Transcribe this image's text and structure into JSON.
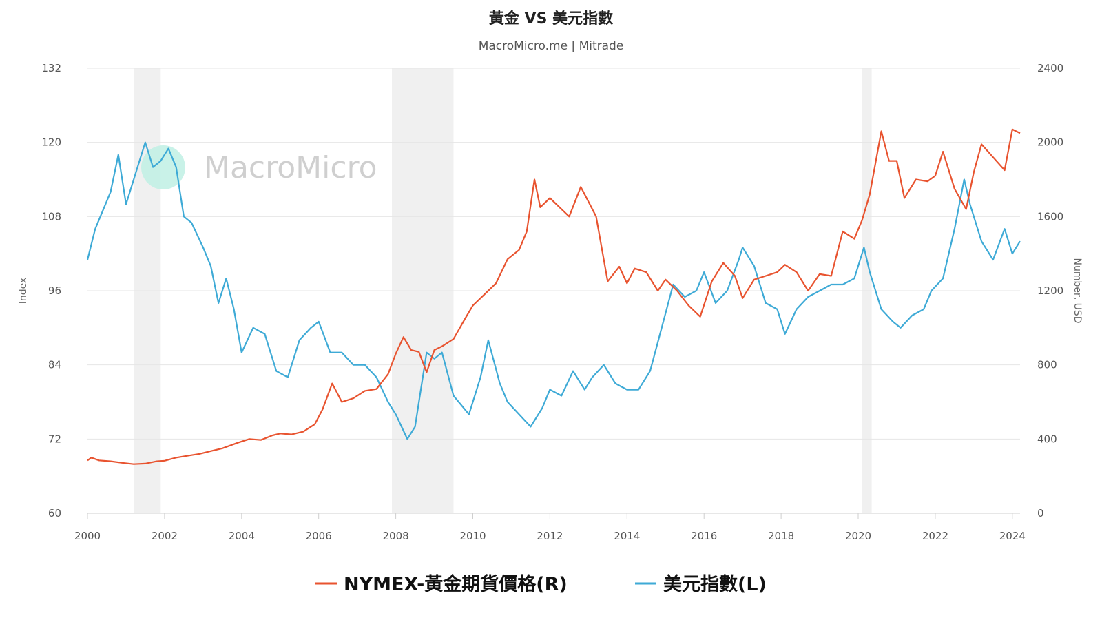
{
  "chart_data": {
    "type": "line",
    "title": "黃金 VS 美元指數",
    "subtitle": "MacroMicro.me | Mitrade",
    "watermark": "MacroMicro",
    "x_ticks": [
      "2000",
      "2002",
      "2004",
      "2006",
      "2008",
      "2010",
      "2012",
      "2014",
      "2016",
      "2018",
      "2020",
      "2022",
      "2024"
    ],
    "xlim": [
      2000,
      2024.2
    ],
    "y_left": {
      "label": "Index",
      "lim": [
        60,
        132
      ],
      "ticks": [
        60,
        72,
        84,
        96,
        108,
        120,
        132
      ]
    },
    "y_right": {
      "label": "Number, USD",
      "lim": [
        0,
        2400
      ],
      "ticks": [
        0,
        400,
        800,
        1200,
        1600,
        2000,
        2400
      ]
    },
    "grid": true,
    "legend_position": "bottom",
    "recession_bands": [
      [
        2001.2,
        2001.9
      ],
      [
        2007.9,
        2009.5
      ],
      [
        2020.1,
        2020.35
      ]
    ],
    "colors": {
      "gold": "#e8532f",
      "usd": "#3eaad6",
      "band": "#f0f0f0",
      "grid": "#e6e6e6"
    },
    "series": [
      {
        "name": "NYMEX-黃金期貨價格(R)",
        "axis": "right",
        "color": "#e8532f",
        "points": [
          [
            2000.0,
            285
          ],
          [
            2000.1,
            300
          ],
          [
            2000.3,
            285
          ],
          [
            2000.6,
            280
          ],
          [
            2000.9,
            272
          ],
          [
            2001.2,
            265
          ],
          [
            2001.5,
            268
          ],
          [
            2001.8,
            280
          ],
          [
            2002.0,
            283
          ],
          [
            2002.3,
            300
          ],
          [
            2002.6,
            310
          ],
          [
            2002.9,
            320
          ],
          [
            2003.2,
            335
          ],
          [
            2003.5,
            350
          ],
          [
            2003.9,
            380
          ],
          [
            2004.2,
            400
          ],
          [
            2004.5,
            395
          ],
          [
            2004.8,
            420
          ],
          [
            2005.0,
            430
          ],
          [
            2005.3,
            425
          ],
          [
            2005.6,
            440
          ],
          [
            2005.9,
            480
          ],
          [
            2006.1,
            560
          ],
          [
            2006.35,
            700
          ],
          [
            2006.6,
            600
          ],
          [
            2006.9,
            620
          ],
          [
            2007.2,
            660
          ],
          [
            2007.5,
            670
          ],
          [
            2007.8,
            750
          ],
          [
            2008.0,
            860
          ],
          [
            2008.2,
            950
          ],
          [
            2008.4,
            880
          ],
          [
            2008.6,
            870
          ],
          [
            2008.8,
            760
          ],
          [
            2009.0,
            880
          ],
          [
            2009.2,
            900
          ],
          [
            2009.5,
            940
          ],
          [
            2009.8,
            1050
          ],
          [
            2010.0,
            1120
          ],
          [
            2010.3,
            1180
          ],
          [
            2010.6,
            1240
          ],
          [
            2010.9,
            1370
          ],
          [
            2011.2,
            1420
          ],
          [
            2011.4,
            1520
          ],
          [
            2011.6,
            1800
          ],
          [
            2011.75,
            1650
          ],
          [
            2012.0,
            1700
          ],
          [
            2012.3,
            1640
          ],
          [
            2012.5,
            1600
          ],
          [
            2012.8,
            1760
          ],
          [
            2013.0,
            1680
          ],
          [
            2013.2,
            1600
          ],
          [
            2013.5,
            1250
          ],
          [
            2013.8,
            1330
          ],
          [
            2014.0,
            1240
          ],
          [
            2014.2,
            1320
          ],
          [
            2014.5,
            1300
          ],
          [
            2014.8,
            1200
          ],
          [
            2015.0,
            1260
          ],
          [
            2015.3,
            1200
          ],
          [
            2015.6,
            1120
          ],
          [
            2015.9,
            1060
          ],
          [
            2016.2,
            1250
          ],
          [
            2016.5,
            1350
          ],
          [
            2016.8,
            1280
          ],
          [
            2017.0,
            1160
          ],
          [
            2017.3,
            1260
          ],
          [
            2017.6,
            1280
          ],
          [
            2017.9,
            1300
          ],
          [
            2018.1,
            1340
          ],
          [
            2018.4,
            1300
          ],
          [
            2018.7,
            1200
          ],
          [
            2019.0,
            1290
          ],
          [
            2019.3,
            1280
          ],
          [
            2019.6,
            1520
          ],
          [
            2019.9,
            1480
          ],
          [
            2020.1,
            1580
          ],
          [
            2020.3,
            1720
          ],
          [
            2020.6,
            2060
          ],
          [
            2020.8,
            1900
          ],
          [
            2021.0,
            1900
          ],
          [
            2021.2,
            1700
          ],
          [
            2021.5,
            1800
          ],
          [
            2021.8,
            1790
          ],
          [
            2022.0,
            1820
          ],
          [
            2022.2,
            1950
          ],
          [
            2022.5,
            1750
          ],
          [
            2022.8,
            1640
          ],
          [
            2023.0,
            1840
          ],
          [
            2023.2,
            1990
          ],
          [
            2023.5,
            1920
          ],
          [
            2023.8,
            1850
          ],
          [
            2024.0,
            2070
          ],
          [
            2024.2,
            2050
          ]
        ]
      },
      {
        "name": "美元指數(L)",
        "axis": "left",
        "color": "#3eaad6",
        "points": [
          [
            2000.0,
            101
          ],
          [
            2000.2,
            106
          ],
          [
            2000.4,
            109
          ],
          [
            2000.6,
            112
          ],
          [
            2000.8,
            118
          ],
          [
            2001.0,
            110
          ],
          [
            2001.3,
            116
          ],
          [
            2001.5,
            120
          ],
          [
            2001.7,
            116
          ],
          [
            2001.9,
            117
          ],
          [
            2002.1,
            119
          ],
          [
            2002.3,
            116
          ],
          [
            2002.5,
            108
          ],
          [
            2002.7,
            107
          ],
          [
            2003.0,
            103
          ],
          [
            2003.2,
            100
          ],
          [
            2003.4,
            94
          ],
          [
            2003.6,
            98
          ],
          [
            2003.8,
            93
          ],
          [
            2004.0,
            86
          ],
          [
            2004.3,
            90
          ],
          [
            2004.6,
            89
          ],
          [
            2004.9,
            83
          ],
          [
            2005.2,
            82
          ],
          [
            2005.5,
            88
          ],
          [
            2005.8,
            90
          ],
          [
            2006.0,
            91
          ],
          [
            2006.3,
            86
          ],
          [
            2006.6,
            86
          ],
          [
            2006.9,
            84
          ],
          [
            2007.2,
            84
          ],
          [
            2007.5,
            82
          ],
          [
            2007.8,
            78
          ],
          [
            2008.0,
            76
          ],
          [
            2008.3,
            72
          ],
          [
            2008.5,
            74
          ],
          [
            2008.8,
            86
          ],
          [
            2009.0,
            85
          ],
          [
            2009.2,
            86
          ],
          [
            2009.5,
            79
          ],
          [
            2009.9,
            76
          ],
          [
            2010.2,
            82
          ],
          [
            2010.4,
            88
          ],
          [
            2010.7,
            81
          ],
          [
            2010.9,
            78
          ],
          [
            2011.2,
            76
          ],
          [
            2011.5,
            74
          ],
          [
            2011.8,
            77
          ],
          [
            2012.0,
            80
          ],
          [
            2012.3,
            79
          ],
          [
            2012.6,
            83
          ],
          [
            2012.9,
            80
          ],
          [
            2013.1,
            82
          ],
          [
            2013.4,
            84
          ],
          [
            2013.7,
            81
          ],
          [
            2014.0,
            80
          ],
          [
            2014.3,
            80
          ],
          [
            2014.6,
            83
          ],
          [
            2014.9,
            90
          ],
          [
            2015.2,
            97
          ],
          [
            2015.5,
            95
          ],
          [
            2015.8,
            96
          ],
          [
            2016.0,
            99
          ],
          [
            2016.3,
            94
          ],
          [
            2016.6,
            96
          ],
          [
            2016.9,
            101
          ],
          [
            2017.0,
            103
          ],
          [
            2017.3,
            100
          ],
          [
            2017.6,
            94
          ],
          [
            2017.9,
            93
          ],
          [
            2018.1,
            89
          ],
          [
            2018.4,
            93
          ],
          [
            2018.7,
            95
          ],
          [
            2019.0,
            96
          ],
          [
            2019.3,
            97
          ],
          [
            2019.6,
            97
          ],
          [
            2019.9,
            98
          ],
          [
            2020.15,
            103
          ],
          [
            2020.3,
            99
          ],
          [
            2020.6,
            93
          ],
          [
            2020.9,
            91
          ],
          [
            2021.1,
            90
          ],
          [
            2021.4,
            92
          ],
          [
            2021.7,
            93
          ],
          [
            2021.9,
            96
          ],
          [
            2022.2,
            98
          ],
          [
            2022.5,
            106
          ],
          [
            2022.75,
            114
          ],
          [
            2022.9,
            110
          ],
          [
            2023.2,
            104
          ],
          [
            2023.5,
            101
          ],
          [
            2023.8,
            106
          ],
          [
            2024.0,
            102
          ],
          [
            2024.2,
            104
          ]
        ]
      }
    ]
  }
}
